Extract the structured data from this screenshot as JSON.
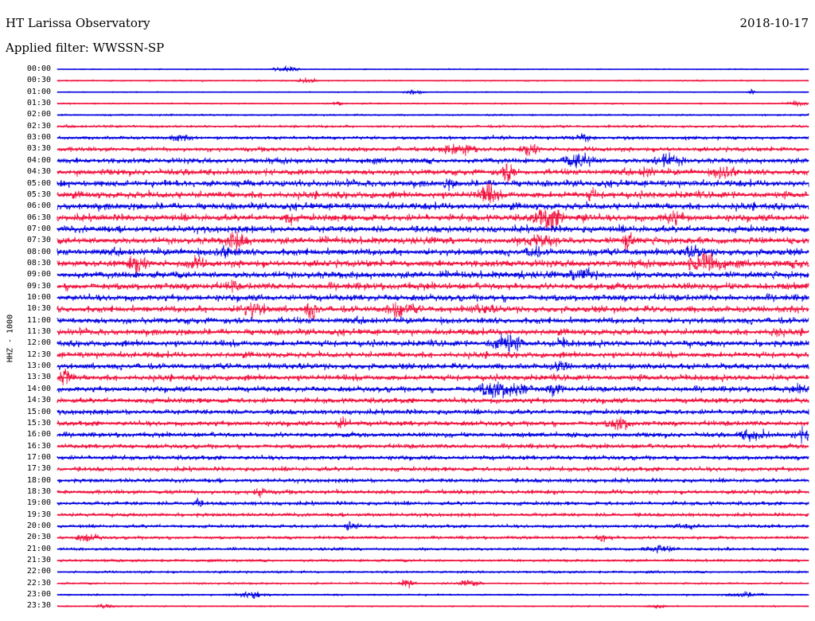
{
  "header": {
    "station": "HT Larissa Observatory",
    "date": "2018-10-17",
    "filter": "Applied filter: WWSSN-SP"
  },
  "axis": {
    "channel_label": "HHZ - 1000"
  },
  "trace_colors": {
    "even": "#0000e0",
    "odd": "#f0103c"
  },
  "trace_times": [
    "00:00",
    "00:30",
    "01:00",
    "01:30",
    "02:00",
    "02:30",
    "03:00",
    "03:30",
    "04:00",
    "04:30",
    "05:00",
    "05:30",
    "06:00",
    "06:30",
    "07:00",
    "07:30",
    "08:00",
    "08:30",
    "09:00",
    "09:30",
    "10:00",
    "10:30",
    "11:00",
    "11:30",
    "12:00",
    "12:30",
    "13:00",
    "13:30",
    "14:00",
    "14:30",
    "15:00",
    "15:30",
    "16:00",
    "16:30",
    "17:00",
    "17:30",
    "18:00",
    "18:30",
    "19:00",
    "19:30",
    "20:00",
    "20:30",
    "21:00",
    "21:30",
    "22:00",
    "22:30",
    "23:00",
    "23:30"
  ],
  "noise_level": [
    0.6,
    0.8,
    0.6,
    0.8,
    1.0,
    1.6,
    2.2,
    3.0,
    3.6,
    4.0,
    4.4,
    4.6,
    4.6,
    4.6,
    4.6,
    4.6,
    4.6,
    4.6,
    4.6,
    4.6,
    4.4,
    4.4,
    4.2,
    4.2,
    4.2,
    4.0,
    4.0,
    4.0,
    3.8,
    3.6,
    3.4,
    3.4,
    3.2,
    3.0,
    3.0,
    3.0,
    2.8,
    2.8,
    2.6,
    2.4,
    2.2,
    2.0,
    1.8,
    1.6,
    1.4,
    1.2,
    1.0,
    0.8
  ]
}
